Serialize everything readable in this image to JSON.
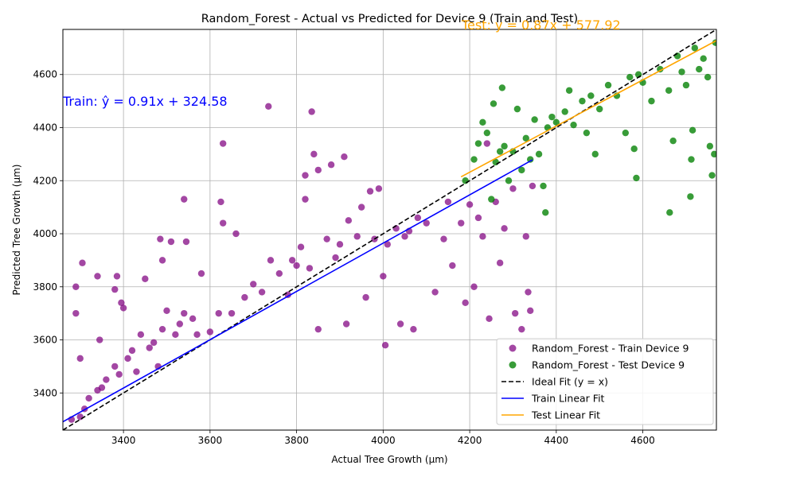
{
  "chart_data": {
    "type": "scatter",
    "title": "Random_Forest - Actual vs Predicted for Device 9 (Train and Test)",
    "xlabel": "Actual Tree Growth (µm)",
    "ylabel": "Predicted Tree Growth (µm)",
    "xlim": [
      3260,
      4770
    ],
    "ylim": [
      3260,
      4770
    ],
    "xticks": [
      3400,
      3600,
      3800,
      4000,
      4200,
      4400,
      4600
    ],
    "yticks": [
      3400,
      3600,
      3800,
      4000,
      4200,
      4400,
      4600
    ],
    "grid": true,
    "legend_position": "lower-right",
    "colors": {
      "train": "#800080",
      "test": "#008000",
      "ideal": "#000000",
      "train_fit": "#0000ff",
      "test_fit": "#ffa500"
    },
    "series": [
      {
        "name": "Random_Forest - Train Device 9",
        "kind": "scatter",
        "points": [
          [
            3280,
            3300
          ],
          [
            3300,
            3310
          ],
          [
            3310,
            3340
          ],
          [
            3290,
            3700
          ],
          [
            3290,
            3800
          ],
          [
            3305,
            3890
          ],
          [
            3300,
            3530
          ],
          [
            3320,
            3380
          ],
          [
            3340,
            3410
          ],
          [
            3350,
            3420
          ],
          [
            3360,
            3450
          ],
          [
            3345,
            3600
          ],
          [
            3340,
            3840
          ],
          [
            3380,
            3500
          ],
          [
            3390,
            3470
          ],
          [
            3385,
            3840
          ],
          [
            3380,
            3790
          ],
          [
            3395,
            3740
          ],
          [
            3400,
            3720
          ],
          [
            3410,
            3530
          ],
          [
            3420,
            3560
          ],
          [
            3430,
            3480
          ],
          [
            3440,
            3620
          ],
          [
            3450,
            3830
          ],
          [
            3460,
            3570
          ],
          [
            3470,
            3590
          ],
          [
            3480,
            3500
          ],
          [
            3490,
            3640
          ],
          [
            3485,
            3980
          ],
          [
            3490,
            3900
          ],
          [
            3500,
            3710
          ],
          [
            3510,
            3970
          ],
          [
            3520,
            3620
          ],
          [
            3530,
            3660
          ],
          [
            3540,
            3700
          ],
          [
            3540,
            4130
          ],
          [
            3545,
            3970
          ],
          [
            3560,
            3680
          ],
          [
            3570,
            3620
          ],
          [
            3580,
            3850
          ],
          [
            3600,
            3630
          ],
          [
            3620,
            3700
          ],
          [
            3625,
            4120
          ],
          [
            3630,
            4340
          ],
          [
            3630,
            4040
          ],
          [
            3650,
            3700
          ],
          [
            3660,
            4000
          ],
          [
            3680,
            3760
          ],
          [
            3700,
            3810
          ],
          [
            3720,
            3780
          ],
          [
            3735,
            4480
          ],
          [
            3740,
            3900
          ],
          [
            3760,
            3850
          ],
          [
            3780,
            3770
          ],
          [
            3790,
            3900
          ],
          [
            3800,
            3880
          ],
          [
            3810,
            3950
          ],
          [
            3820,
            4220
          ],
          [
            3820,
            4130
          ],
          [
            3830,
            3870
          ],
          [
            3835,
            4460
          ],
          [
            3840,
            4300
          ],
          [
            3850,
            3640
          ],
          [
            3850,
            4240
          ],
          [
            3870,
            3980
          ],
          [
            3880,
            4260
          ],
          [
            3890,
            3910
          ],
          [
            3900,
            3960
          ],
          [
            3910,
            4290
          ],
          [
            3915,
            3660
          ],
          [
            3920,
            4050
          ],
          [
            3940,
            3990
          ],
          [
            3950,
            4100
          ],
          [
            3960,
            3760
          ],
          [
            3970,
            4160
          ],
          [
            3980,
            3980
          ],
          [
            3990,
            4170
          ],
          [
            4000,
            3840
          ],
          [
            4005,
            3580
          ],
          [
            4010,
            3960
          ],
          [
            4030,
            4020
          ],
          [
            4040,
            3660
          ],
          [
            4050,
            3990
          ],
          [
            4060,
            4010
          ],
          [
            4070,
            3640
          ],
          [
            4080,
            4060
          ],
          [
            4100,
            4040
          ],
          [
            4120,
            3780
          ],
          [
            4140,
            3980
          ],
          [
            4150,
            4120
          ],
          [
            4160,
            3880
          ],
          [
            4180,
            4040
          ],
          [
            4190,
            3740
          ],
          [
            4200,
            4110
          ],
          [
            4210,
            3800
          ],
          [
            4220,
            4060
          ],
          [
            4230,
            3990
          ],
          [
            4240,
            4340
          ],
          [
            4245,
            3680
          ],
          [
            4260,
            4120
          ],
          [
            4270,
            3890
          ],
          [
            4280,
            4020
          ],
          [
            4300,
            4170
          ],
          [
            4305,
            3700
          ],
          [
            4320,
            3640
          ],
          [
            4330,
            3990
          ],
          [
            4335,
            3780
          ],
          [
            4340,
            3710
          ],
          [
            4345,
            4180
          ]
        ]
      },
      {
        "name": "Random_Forest - Test Device 9",
        "kind": "scatter",
        "points": [
          [
            4190,
            4200
          ],
          [
            4210,
            4280
          ],
          [
            4220,
            4340
          ],
          [
            4230,
            4420
          ],
          [
            4240,
            4380
          ],
          [
            4250,
            4130
          ],
          [
            4255,
            4490
          ],
          [
            4260,
            4270
          ],
          [
            4270,
            4310
          ],
          [
            4275,
            4550
          ],
          [
            4280,
            4330
          ],
          [
            4290,
            4200
          ],
          [
            4300,
            4310
          ],
          [
            4310,
            4470
          ],
          [
            4320,
            4240
          ],
          [
            4330,
            4360
          ],
          [
            4340,
            4280
          ],
          [
            4350,
            4430
          ],
          [
            4360,
            4300
          ],
          [
            4370,
            4180
          ],
          [
            4375,
            4080
          ],
          [
            4380,
            4400
          ],
          [
            4390,
            4440
          ],
          [
            4400,
            4420
          ],
          [
            4420,
            4460
          ],
          [
            4430,
            4540
          ],
          [
            4440,
            4410
          ],
          [
            4460,
            4500
          ],
          [
            4470,
            4380
          ],
          [
            4480,
            4520
          ],
          [
            4490,
            4300
          ],
          [
            4500,
            4470
          ],
          [
            4520,
            4560
          ],
          [
            4540,
            4520
          ],
          [
            4560,
            4380
          ],
          [
            4570,
            4590
          ],
          [
            4580,
            4320
          ],
          [
            4585,
            4210
          ],
          [
            4590,
            4600
          ],
          [
            4600,
            4570
          ],
          [
            4620,
            4500
          ],
          [
            4640,
            4620
          ],
          [
            4660,
            4540
          ],
          [
            4662,
            4080
          ],
          [
            4670,
            4350
          ],
          [
            4680,
            4670
          ],
          [
            4690,
            4610
          ],
          [
            4700,
            4560
          ],
          [
            4710,
            4140
          ],
          [
            4712,
            4280
          ],
          [
            4715,
            4390
          ],
          [
            4720,
            4700
          ],
          [
            4730,
            4620
          ],
          [
            4740,
            4660
          ],
          [
            4750,
            4590
          ],
          [
            4755,
            4330
          ],
          [
            4760,
            4220
          ],
          [
            4765,
            4300
          ],
          [
            4768,
            4720
          ]
        ]
      },
      {
        "name": "Ideal Fit (y = x)",
        "kind": "line",
        "style": "dashed",
        "x": [
          3260,
          4770
        ],
        "y": [
          3260,
          4770
        ]
      },
      {
        "name": "Train Linear Fit",
        "kind": "line",
        "x": [
          3260,
          4345
        ],
        "y": [
          3291.18,
          4278.53
        ]
      },
      {
        "name": "Test Linear Fit",
        "kind": "line",
        "x": [
          4180,
          4770
        ],
        "y": [
          4214.52,
          4727.82
        ]
      }
    ],
    "annotations": [
      {
        "text": "Train: ŷ = 0.91x + 324.58",
        "color": "#0000ff"
      },
      {
        "text": "Test: y = 0.87x + 577.92",
        "color": "#ffa500"
      }
    ]
  }
}
